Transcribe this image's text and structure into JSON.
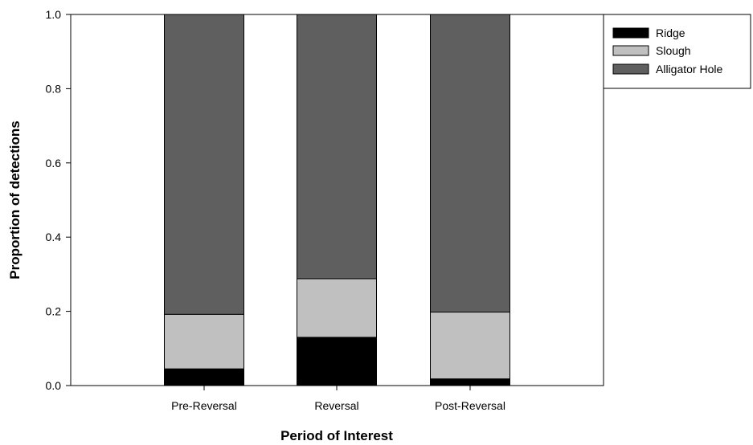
{
  "chart_data": {
    "type": "bar",
    "stacked": true,
    "title": "",
    "xlabel": "Period of Interest",
    "ylabel": "Proportion of detections",
    "categories": [
      "Pre-Reversal",
      "Reversal",
      "Post-Reversal"
    ],
    "series": [
      {
        "name": "Ridge",
        "values": [
          0.045,
          0.13,
          0.018
        ],
        "color": "#000000"
      },
      {
        "name": "Slough",
        "values": [
          0.147,
          0.158,
          0.18
        ],
        "color": "#c0c0c0"
      },
      {
        "name": "Alligator Hole",
        "values": [
          0.808,
          0.712,
          0.802
        ],
        "color": "#5f5f5f"
      }
    ],
    "ylim": [
      0,
      1.0
    ],
    "yticks": [
      0.0,
      0.2,
      0.4,
      0.6,
      0.8,
      1.0
    ],
    "ytick_labels": [
      "0.0",
      "0.2",
      "0.4",
      "0.6",
      "0.8",
      "1.0"
    ],
    "grid": false,
    "legend_position": "top-right"
  }
}
